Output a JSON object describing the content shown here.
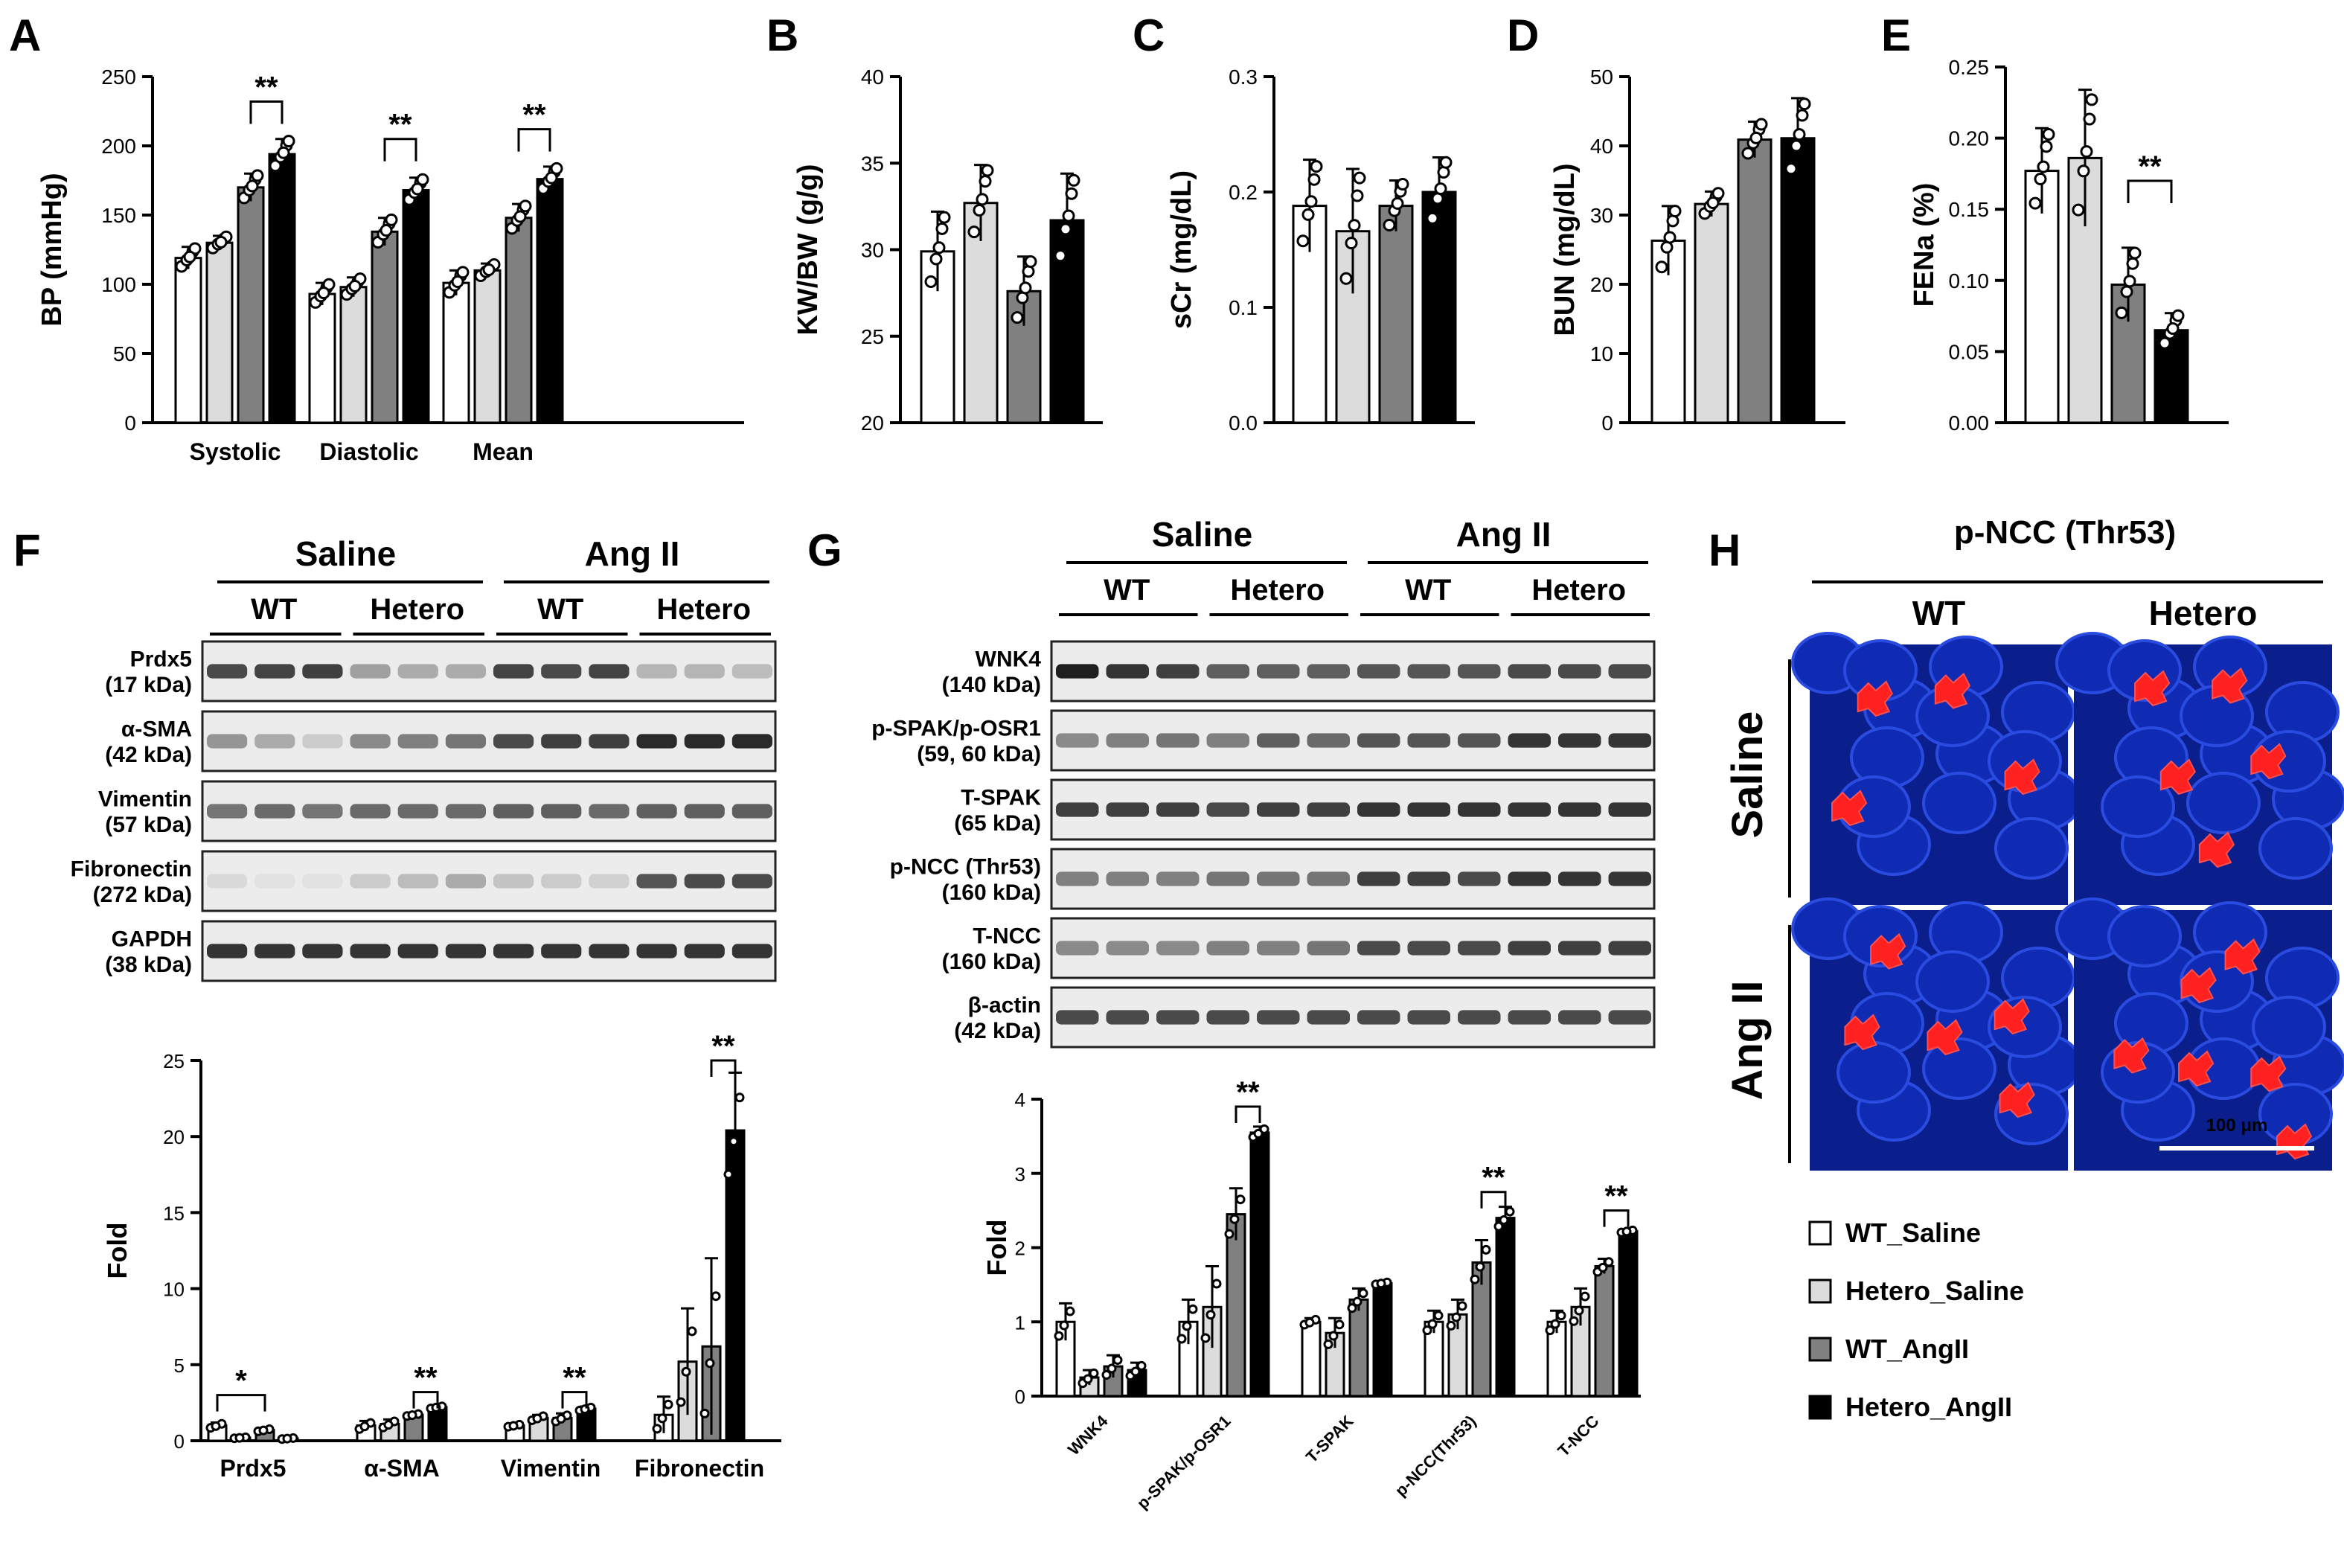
{
  "legend": [
    {
      "name": "WT_Saline",
      "color": "#ffffff"
    },
    {
      "name": "Hetero_Saline",
      "color": "#dcdcdc"
    },
    {
      "name": "WT_AngII",
      "color": "#808080"
    },
    {
      "name": "Hetero_AngII",
      "color": "#000000"
    }
  ],
  "panels": {
    "A": {
      "letter": "A"
    },
    "B": {
      "letter": "B"
    },
    "C": {
      "letter": "C"
    },
    "D": {
      "letter": "D"
    },
    "E": {
      "letter": "E"
    },
    "F": {
      "letter": "F"
    },
    "G": {
      "letter": "G"
    },
    "H": {
      "letter": "H"
    }
  },
  "chart_data": [
    {
      "id": "A",
      "type": "bar",
      "ylabel": "BP (mmHg)",
      "ylim": [
        0,
        250
      ],
      "yticks": [
        "0",
        "50",
        "100",
        "150",
        "200",
        "250"
      ],
      "categories": [
        "Systolic",
        "Diastolic",
        "Mean"
      ],
      "series": [
        {
          "name": "WT_Saline",
          "values": [
            119,
            93,
            101
          ],
          "errors": [
            8,
            8,
            9
          ]
        },
        {
          "name": "Hetero_Saline",
          "values": [
            130,
            98,
            110
          ],
          "errors": [
            5,
            7,
            5
          ]
        },
        {
          "name": "WT_AngII",
          "values": [
            170,
            138,
            148
          ],
          "errors": [
            10,
            10,
            10
          ]
        },
        {
          "name": "Hetero_AngII",
          "values": [
            194,
            168,
            176
          ],
          "errors": [
            11,
            9,
            9
          ]
        }
      ],
      "significance": [
        {
          "category": 0,
          "from": 2,
          "to": 3,
          "label": "**",
          "at": 232
        },
        {
          "category": 1,
          "from": 2,
          "to": 3,
          "label": "**",
          "at": 205
        },
        {
          "category": 2,
          "from": 2,
          "to": 3,
          "label": "**",
          "at": 212
        }
      ]
    },
    {
      "id": "B",
      "type": "bar",
      "ylabel": "KW/BW (g/g)",
      "ylim": [
        20,
        40
      ],
      "yticks": [
        "20",
        "25",
        "30",
        "35",
        "40"
      ],
      "categories": [
        ""
      ],
      "series": [
        {
          "name": "WT_Saline",
          "values": [
            29.9
          ],
          "errors": [
            2.3
          ]
        },
        {
          "name": "Hetero_Saline",
          "values": [
            32.7
          ],
          "errors": [
            2.2
          ]
        },
        {
          "name": "WT_AngII",
          "values": [
            27.6
          ],
          "errors": [
            2.0
          ]
        },
        {
          "name": "Hetero_AngII",
          "values": [
            31.7
          ],
          "errors": [
            2.7
          ]
        }
      ],
      "significance": []
    },
    {
      "id": "C",
      "type": "bar",
      "ylabel": "sCr (mg/dL)",
      "ylim": [
        0,
        0.3
      ],
      "yticks": [
        "0.0",
        "0.1",
        "0.2",
        "0.3"
      ],
      "categories": [
        ""
      ],
      "series": [
        {
          "name": "WT_Saline",
          "values": [
            0.188
          ],
          "errors": [
            0.04
          ]
        },
        {
          "name": "Hetero_Saline",
          "values": [
            0.166
          ],
          "errors": [
            0.054
          ]
        },
        {
          "name": "WT_AngII",
          "values": [
            0.188
          ],
          "errors": [
            0.022
          ]
        },
        {
          "name": "Hetero_AngII",
          "values": [
            0.2
          ],
          "errors": [
            0.03
          ]
        }
      ],
      "significance": []
    },
    {
      "id": "D",
      "type": "bar",
      "ylabel": "BUN (mg/dL)",
      "ylim": [
        0,
        50
      ],
      "yticks": [
        "0",
        "10",
        "20",
        "30",
        "40",
        "50"
      ],
      "categories": [
        ""
      ],
      "series": [
        {
          "name": "WT_Saline",
          "values": [
            26.3
          ],
          "errors": [
            5
          ]
        },
        {
          "name": "Hetero_Saline",
          "values": [
            31.6
          ],
          "errors": [
            1.8
          ]
        },
        {
          "name": "WT_AngII",
          "values": [
            40.9
          ],
          "errors": [
            2.6
          ]
        },
        {
          "name": "Hetero_AngII",
          "values": [
            41.1
          ],
          "errors": [
            5.8
          ]
        }
      ],
      "significance": []
    },
    {
      "id": "E",
      "type": "bar",
      "ylabel": "FENa (%)",
      "ylim": [
        0,
        0.25
      ],
      "yticks": [
        "0.00",
        "0.05",
        "0.10",
        "0.15",
        "0.20",
        "0.25"
      ],
      "categories": [
        ""
      ],
      "series": [
        {
          "name": "WT_Saline",
          "values": [
            0.177
          ],
          "errors": [
            0.03
          ]
        },
        {
          "name": "Hetero_Saline",
          "values": [
            0.186
          ],
          "errors": [
            0.048
          ]
        },
        {
          "name": "WT_AngII",
          "values": [
            0.097
          ],
          "errors": [
            0.026
          ]
        },
        {
          "name": "Hetero_AngII",
          "values": [
            0.065
          ],
          "errors": [
            0.012
          ]
        }
      ],
      "significance": [
        {
          "category": 0,
          "from": 2,
          "to": 3,
          "label": "**",
          "at": 0.17
        }
      ]
    },
    {
      "id": "F",
      "type": "bar",
      "ylabel": "Fold",
      "ylim": [
        0,
        25
      ],
      "yticks": [
        "0",
        "5",
        "10",
        "15",
        "20",
        "25"
      ],
      "categories": [
        "Prdx5",
        "α-SMA",
        "Vimentin",
        "Fibronectin"
      ],
      "series": [
        {
          "name": "WT_Saline",
          "values": [
            1.0,
            1.0,
            1.0,
            1.7
          ],
          "errors": [
            0.2,
            0.3,
            0.1,
            1.2
          ]
        },
        {
          "name": "Hetero_Saline",
          "values": [
            0.2,
            1.1,
            1.5,
            5.2
          ],
          "errors": [
            0.05,
            0.3,
            0.2,
            3.5
          ]
        },
        {
          "name": "WT_AngII",
          "values": [
            0.7,
            1.7,
            1.5,
            6.2
          ],
          "errors": [
            0.1,
            0.1,
            0.3,
            5.8
          ]
        },
        {
          "name": "Hetero_AngII",
          "values": [
            0.15,
            2.2,
            2.1,
            20.4
          ],
          "errors": [
            0.05,
            0.1,
            0.15,
            3.8
          ]
        }
      ],
      "significance": [
        {
          "category": 0,
          "from": 0,
          "to": 2,
          "label": "*",
          "at": 3.0
        },
        {
          "category": 1,
          "from": 2,
          "to": 3,
          "label": "**",
          "at": 3.2
        },
        {
          "category": 2,
          "from": 2,
          "to": 3,
          "label": "**",
          "at": 3.2
        },
        {
          "category": 3,
          "from": 2,
          "to": 3,
          "label": "**",
          "at": 25.0
        }
      ]
    },
    {
      "id": "G",
      "type": "bar",
      "ylabel": "Fold",
      "ylim": [
        0,
        4
      ],
      "yticks": [
        "0",
        "1",
        "2",
        "3",
        "4"
      ],
      "categories": [
        "WNK4",
        "p-SPAK/p-OSR1",
        "T-SPAK",
        "p-NCC(Thr53)",
        "T-NCC"
      ],
      "series": [
        {
          "name": "WT_Saline",
          "values": [
            1.0,
            1.0,
            1.0,
            1.0,
            1.0
          ],
          "errors": [
            0.25,
            0.3,
            0.05,
            0.15,
            0.15
          ]
        },
        {
          "name": "Hetero_Saline",
          "values": [
            0.25,
            1.2,
            0.85,
            1.1,
            1.2
          ],
          "errors": [
            0.1,
            0.55,
            0.2,
            0.2,
            0.25
          ]
        },
        {
          "name": "WT_AngII",
          "values": [
            0.4,
            2.45,
            1.3,
            1.8,
            1.75
          ],
          "errors": [
            0.15,
            0.35,
            0.15,
            0.3,
            0.1
          ]
        },
        {
          "name": "Hetero_AngII",
          "values": [
            0.35,
            3.55,
            1.52,
            2.4,
            2.22
          ],
          "errors": [
            0.1,
            0.08,
            0.02,
            0.15,
            0.02
          ]
        }
      ],
      "significance": [
        {
          "category": 1,
          "from": 2,
          "to": 3,
          "label": "**",
          "at": 3.9
        },
        {
          "category": 3,
          "from": 2,
          "to": 3,
          "label": "**",
          "at": 2.75
        },
        {
          "category": 4,
          "from": 2,
          "to": 3,
          "label": "**",
          "at": 2.5
        }
      ]
    }
  ],
  "blots": {
    "F": {
      "group_labels": [
        "Saline",
        "Ang II"
      ],
      "subgroup_labels": [
        "WT",
        "Hetero",
        "WT",
        "Hetero"
      ],
      "rows": [
        {
          "name": "Prdx5",
          "size": "(17 kDa)",
          "intensity": [
            0.75,
            0.78,
            0.8,
            0.35,
            0.3,
            0.3,
            0.78,
            0.75,
            0.78,
            0.25,
            0.25,
            0.22
          ]
        },
        {
          "name": "α-SMA",
          "size": "(42 kDa)",
          "intensity": [
            0.4,
            0.3,
            0.15,
            0.45,
            0.5,
            0.55,
            0.75,
            0.8,
            0.8,
            0.9,
            0.9,
            0.9
          ]
        },
        {
          "name": "Vimentin",
          "size": "(57 kDa)",
          "intensity": [
            0.55,
            0.6,
            0.55,
            0.6,
            0.6,
            0.6,
            0.65,
            0.65,
            0.6,
            0.65,
            0.65,
            0.65
          ]
        },
        {
          "name": "Fibronectin",
          "size": "(272 kDa)",
          "intensity": [
            0.08,
            0.04,
            0.04,
            0.15,
            0.22,
            0.3,
            0.18,
            0.15,
            0.12,
            0.7,
            0.75,
            0.75
          ]
        },
        {
          "name": "GAPDH",
          "size": "(38 kDa)",
          "intensity": [
            0.85,
            0.85,
            0.85,
            0.85,
            0.85,
            0.85,
            0.85,
            0.85,
            0.85,
            0.85,
            0.85,
            0.85
          ]
        }
      ]
    },
    "G": {
      "group_labels": [
        "Saline",
        "Ang II"
      ],
      "subgroup_labels": [
        "WT",
        "Hetero",
        "WT",
        "Hetero"
      ],
      "rows": [
        {
          "name": "WNK4",
          "size": "(140 kDa)",
          "intensity": [
            0.95,
            0.85,
            0.8,
            0.65,
            0.65,
            0.65,
            0.7,
            0.7,
            0.7,
            0.75,
            0.75,
            0.75
          ]
        },
        {
          "name": "p-SPAK/p-OSR1",
          "size": "(59, 60 kDa)",
          "intensity": [
            0.45,
            0.5,
            0.55,
            0.5,
            0.65,
            0.6,
            0.7,
            0.7,
            0.7,
            0.85,
            0.85,
            0.85
          ]
        },
        {
          "name": "T-SPAK",
          "size": "(65 kDa)",
          "intensity": [
            0.8,
            0.8,
            0.8,
            0.75,
            0.8,
            0.8,
            0.85,
            0.85,
            0.85,
            0.85,
            0.85,
            0.85
          ]
        },
        {
          "name": "p-NCC (Thr53)",
          "size": "(160 kDa)",
          "intensity": [
            0.5,
            0.5,
            0.5,
            0.55,
            0.55,
            0.55,
            0.8,
            0.8,
            0.75,
            0.85,
            0.85,
            0.85
          ]
        },
        {
          "name": "T-NCC",
          "size": "(160 kDa)",
          "intensity": [
            0.45,
            0.45,
            0.45,
            0.5,
            0.5,
            0.55,
            0.75,
            0.75,
            0.75,
            0.8,
            0.8,
            0.8
          ]
        },
        {
          "name": "β-actin",
          "size": "(42 kDa)",
          "intensity": [
            0.75,
            0.75,
            0.75,
            0.75,
            0.75,
            0.75,
            0.75,
            0.75,
            0.75,
            0.75,
            0.75,
            0.75
          ]
        }
      ]
    }
  },
  "images": {
    "H": {
      "title": "p-NCC (Thr53)",
      "columns": [
        "WT",
        "Hetero"
      ],
      "rows": [
        "Saline",
        "Ang II"
      ],
      "scale_bar": "100 μm"
    }
  }
}
